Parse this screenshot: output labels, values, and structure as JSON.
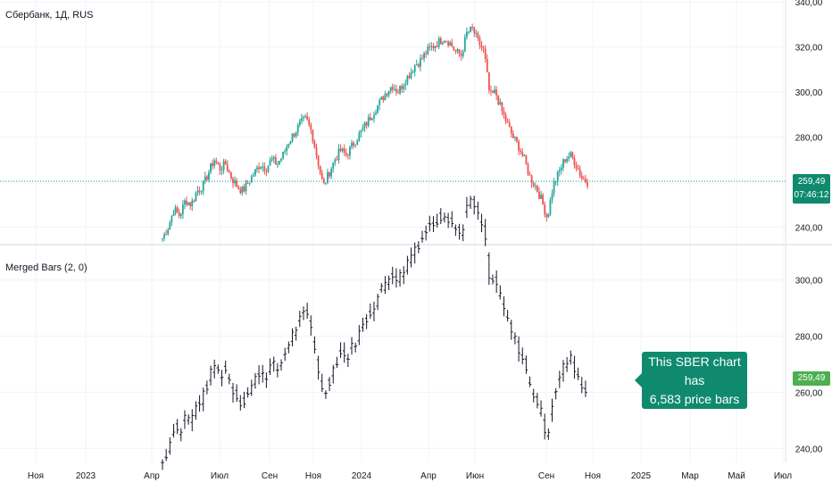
{
  "top_pane": {
    "title": "Сбербанк, 1Д, RUS",
    "price_tag": "259,49",
    "countdown": "07:46:12"
  },
  "bottom_pane": {
    "title": "Merged Bars (2, 0)",
    "price_tag": "259,49"
  },
  "callout": {
    "line1": "This SBER chart has",
    "line2": "6,583 price bars"
  },
  "colors": {
    "up": "#26a69a",
    "down": "#ef5350",
    "bar": "#131722",
    "accent": "#0f8a6e",
    "tag_bottom": "#4caf50",
    "grid": "#f0f3fa"
  },
  "chart_data": [
    {
      "type": "candlestick",
      "pane": "top",
      "title": "Сбербанк, 1Д, RUS",
      "ylim": [
        233,
        340
      ],
      "y_ticks": [
        {
          "value": 340,
          "label": "340,00"
        },
        {
          "value": 320,
          "label": "320,00"
        },
        {
          "value": 300,
          "label": "300,00"
        },
        {
          "value": 280,
          "label": "280,00"
        },
        {
          "value": 260,
          "label": "260,00"
        },
        {
          "value": 240,
          "label": "240,00"
        }
      ],
      "last_price": 259.49,
      "series": [
        {
          "values": [
            235,
            240,
            248,
            245,
            252,
            250,
            256,
            258,
            264,
            270,
            266,
            268,
            262,
            258,
            256,
            260,
            264,
            268,
            266,
            270,
            268,
            272,
            278,
            282,
            286,
            288,
            282,
            270,
            258,
            264,
            270,
            274,
            272,
            276,
            280,
            284,
            288,
            292,
            296,
            300,
            303,
            300,
            304,
            308,
            312,
            314,
            318,
            320,
            322,
            324,
            322,
            318,
            316,
            326,
            328,
            322,
            318,
            298,
            300,
            292,
            286,
            280,
            276,
            270,
            262,
            258,
            252,
            244,
            258,
            264,
            270,
            272,
            268,
            262,
            260
          ]
        }
      ]
    },
    {
      "type": "ohlc",
      "pane": "bottom",
      "title": "Merged Bars (2, 0)",
      "ylim": [
        235,
        312
      ],
      "y_ticks": [
        {
          "value": 300,
          "label": "300,00"
        },
        {
          "value": 280,
          "label": "280,00"
        },
        {
          "value": 260,
          "label": "260,00"
        },
        {
          "value": 240,
          "label": "240,00"
        }
      ],
      "last_price": 259.49,
      "x_ticks": [
        "Ноя",
        "2023",
        "Апр",
        "Июл",
        "Сен",
        "Ноя",
        "2024",
        "Апр",
        "Июн",
        "Сен",
        "Ноя",
        "2025",
        "Мар",
        "Май",
        "Июл"
      ]
    }
  ]
}
